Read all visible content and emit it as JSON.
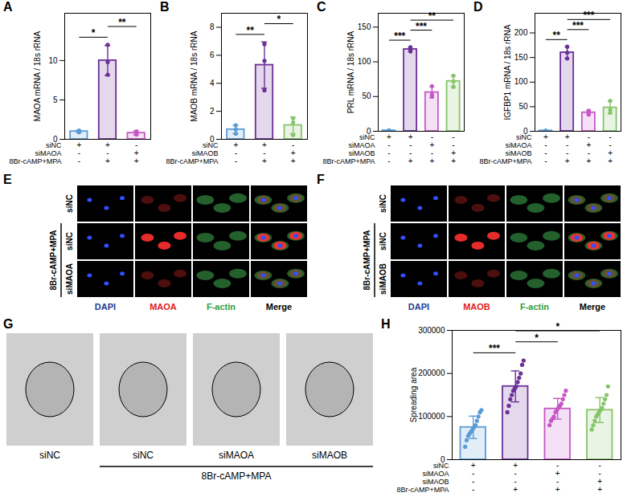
{
  "chart_data": [
    {
      "type": "bar",
      "title": "A",
      "y_label": "MAOA mRNA / 18s rRNA",
      "tick_labels": "y",
      "values": [
        1.0,
        10.0,
        0.8
      ],
      "errors": [
        0.15,
        1.9,
        0.25
      ],
      "points": [
        [
          0.9,
          1.1,
          1.0
        ],
        [
          12.0,
          9.8,
          8.2
        ],
        [
          0.6,
          1.0,
          0.8
        ]
      ],
      "colors": [
        "#5b9bd5",
        "#6b2f96",
        "#c657c6"
      ],
      "ylim": [
        0,
        16
      ],
      "yticks": [
        0,
        5,
        10
      ],
      "conditions": [
        {
          "label": "siNC",
          "signs": [
            "+",
            "+",
            "-"
          ]
        },
        {
          "label": "siMAOA",
          "signs": [
            "-",
            "-",
            "+"
          ]
        },
        {
          "label": "8Br-cAMP+MPA",
          "signs": [
            "-",
            "+",
            "+"
          ]
        }
      ],
      "annotations": [
        {
          "from": 0,
          "to": 1,
          "label": "*"
        },
        {
          "from": 1,
          "to": 2,
          "label": "**"
        }
      ]
    },
    {
      "type": "bar",
      "title": "B",
      "y_label": "MAOB mRNA / 18s rRNA",
      "tick_labels": "y",
      "values": [
        0.7,
        5.3,
        1.0
      ],
      "errors": [
        0.3,
        1.65,
        0.6
      ],
      "points": [
        [
          0.4,
          1.0,
          0.7
        ],
        [
          6.8,
          5.6,
          3.5
        ],
        [
          0.3,
          1.5,
          1.2
        ]
      ],
      "colors": [
        "#5b9bd5",
        "#6b2f96",
        "#86c46a"
      ],
      "ylim": [
        0,
        9
      ],
      "yticks": [
        0,
        2,
        4,
        6,
        8
      ],
      "conditions": [
        {
          "label": "siNC",
          "signs": [
            "+",
            "+",
            "-"
          ]
        },
        {
          "label": "siMAOB",
          "signs": [
            "-",
            "-",
            "+"
          ]
        },
        {
          "label": "8Br-cAMP+MPA",
          "signs": [
            "-",
            "+",
            "+"
          ]
        }
      ],
      "annotations": [
        {
          "from": 0,
          "to": 1,
          "label": "**"
        },
        {
          "from": 1,
          "to": 2,
          "label": "*"
        }
      ]
    },
    {
      "type": "bar",
      "title": "C",
      "y_label": "PRL mRNA / 18s rRNA",
      "tick_labels": "y",
      "values": [
        1,
        118,
        56,
        72
      ],
      "errors": [
        0.4,
        3,
        8,
        8
      ],
      "points": [
        [
          0.6,
          1.0,
          1.4
        ],
        [
          115,
          118,
          121
        ],
        [
          50,
          53,
          65
        ],
        [
          64,
          72,
          80
        ]
      ],
      "colors": [
        "#5b9bd5",
        "#6b2f96",
        "#c657c6",
        "#86c46a"
      ],
      "ylim": [
        0,
        170
      ],
      "yticks": [
        0,
        50,
        100,
        150
      ],
      "conditions": [
        {
          "label": "siNC",
          "signs": [
            "+",
            "+",
            "-",
            "-"
          ]
        },
        {
          "label": "siMAOA",
          "signs": [
            "-",
            "-",
            "+",
            "-"
          ]
        },
        {
          "label": "siMAOB",
          "signs": [
            "-",
            "-",
            "-",
            "+"
          ]
        },
        {
          "label": "8Br-cAMP+MPA",
          "signs": [
            "-",
            "+",
            "+",
            "+"
          ]
        }
      ],
      "annotations": [
        {
          "from": 0,
          "to": 1,
          "label": "***"
        },
        {
          "from": 1,
          "to": 2,
          "label": "***"
        },
        {
          "from": 1,
          "to": 3,
          "label": "**"
        }
      ]
    },
    {
      "type": "bar",
      "title": "D",
      "y_label": "IGFBP1 mRNA / 18s rRNA",
      "tick_labels": "y",
      "values": [
        1,
        160,
        38,
        48
      ],
      "errors": [
        0.2,
        12,
        4,
        12.5
      ],
      "points": [
        [
          0.8,
          1.0,
          1.2
        ],
        [
          148,
          160,
          172
        ],
        [
          34,
          38,
          42
        ],
        [
          38,
          44,
          62
        ]
      ],
      "colors": [
        "#5b9bd5",
        "#6b2f96",
        "#c657c6",
        "#86c46a"
      ],
      "ylim": [
        0,
        240
      ],
      "yticks": [
        0,
        50,
        100,
        150,
        200
      ],
      "conditions": [
        {
          "label": "siNC",
          "signs": [
            "+",
            "+",
            "-",
            "-"
          ]
        },
        {
          "label": "siMAOA",
          "signs": [
            "-",
            "-",
            "+",
            "-"
          ]
        },
        {
          "label": "siMAOB",
          "signs": [
            "-",
            "-",
            "-",
            "+"
          ]
        },
        {
          "label": "8Br-cAMP+MPA",
          "signs": [
            "-",
            "+",
            "+",
            "+"
          ]
        }
      ],
      "annotations": [
        {
          "from": 0,
          "to": 1,
          "label": "**"
        },
        {
          "from": 1,
          "to": 2,
          "label": "***"
        },
        {
          "from": 1,
          "to": 3,
          "label": "***"
        }
      ]
    },
    {
      "type": "bar",
      "title": "H",
      "y_label": "Spreading area",
      "tick_labels": "y",
      "values": [
        75000,
        170000,
        118000,
        115000
      ],
      "errors": [
        26000,
        36000,
        24000,
        29000
      ],
      "points": [
        [
          30000,
          45000,
          55000,
          60000,
          65000,
          70000,
          75000,
          80000,
          90000,
          100000,
          110000,
          115000
        ],
        [
          110000,
          125000,
          140000,
          150000,
          160000,
          165000,
          170000,
          180000,
          190000,
          200000,
          220000,
          230000
        ],
        [
          80000,
          90000,
          95000,
          100000,
          110000,
          115000,
          120000,
          125000,
          130000,
          140000,
          150000,
          160000
        ],
        [
          70000,
          80000,
          90000,
          100000,
          105000,
          110000,
          115000,
          120000,
          130000,
          140000,
          150000,
          170000
        ]
      ],
      "colors": [
        "#5b9bd5",
        "#6b2f96",
        "#c657c6",
        "#86c46a"
      ],
      "ylim": [
        0,
        300000
      ],
      "yticks": [
        0,
        100000,
        200000,
        300000
      ],
      "conditions": [
        {
          "label": "siNC",
          "signs": [
            "+",
            "+",
            "-",
            "-"
          ]
        },
        {
          "label": "siMAOA",
          "signs": [
            "-",
            "-",
            "+",
            "-"
          ]
        },
        {
          "label": "siMAOB",
          "signs": [
            "-",
            "-",
            "-",
            "+"
          ]
        },
        {
          "label": "8Br-cAMP+MPA",
          "signs": [
            "-",
            "+",
            "+",
            "+"
          ]
        }
      ],
      "annotations": [
        {
          "from": 0,
          "to": 1,
          "label": "***"
        },
        {
          "from": 1,
          "to": 2,
          "label": "*"
        },
        {
          "from": 1,
          "to": 3,
          "label": "*"
        }
      ]
    }
  ],
  "image_panels": [
    {
      "panel": "E",
      "columns": [
        "DAPI",
        "MAOA",
        "F-actin",
        "Merge"
      ],
      "column_colors": [
        "#1f3a93",
        "#e02020",
        "#2e9e3e",
        "#000000"
      ],
      "rows": [
        "siNC",
        "siNC",
        "siMAOA"
      ],
      "group": {
        "label": "8Br-cAMP+MPA",
        "rows": [
          1,
          2
        ]
      }
    },
    {
      "panel": "F",
      "columns": [
        "DAPI",
        "MAOB",
        "F-actin",
        "Merge"
      ],
      "column_colors": [
        "#1f3a93",
        "#e02020",
        "#2e9e3e",
        "#000000"
      ],
      "rows": [
        "siNC",
        "siNC",
        "siMAOB"
      ],
      "group": {
        "label": "8Br-cAMP+MPA",
        "rows": [
          1,
          2
        ]
      }
    },
    {
      "panel": "G",
      "images": [
        "siNC",
        "siNC",
        "siMAOA",
        "siMAOB"
      ],
      "group": {
        "label": "8Br-cAMP+MPA",
        "images": [
          1,
          2,
          3
        ]
      }
    }
  ]
}
